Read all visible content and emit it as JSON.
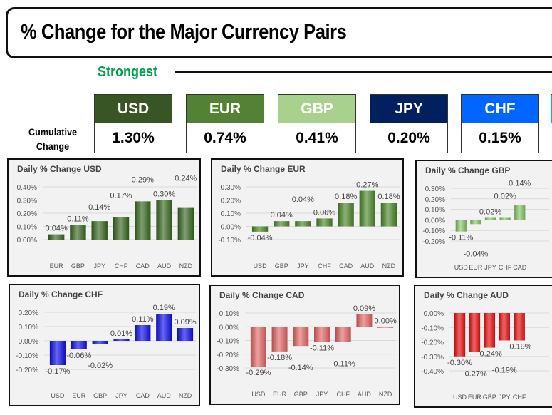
{
  "header": {
    "title": "% Change for the Major Currency Pairs",
    "strongest_label": "Strongest",
    "cumulative_label_line1": "Cumulative",
    "cumulative_label_line2": "Change"
  },
  "currencies": [
    {
      "code": "USD",
      "value": "1.30%",
      "color": "#375623"
    },
    {
      "code": "EUR",
      "value": "0.74%",
      "color": "#548235"
    },
    {
      "code": "GBP",
      "value": "0.41%",
      "color": "#a9d18e"
    },
    {
      "code": "JPY",
      "value": "0.20%",
      "color": "#002060"
    },
    {
      "code": "CHF",
      "value": "0.15%",
      "color": "#0066ff"
    },
    {
      "code": "",
      "value": "",
      "color": "#00b0f0"
    }
  ],
  "chart_data": [
    {
      "type": "bar",
      "title": "Daily % Change USD",
      "categories": [
        "EUR",
        "GBP",
        "JPY",
        "CHF",
        "CAD",
        "AUD",
        "NZD"
      ],
      "values": [
        0.04,
        0.11,
        0.14,
        0.17,
        0.29,
        0.3,
        0.24
      ],
      "ylim": [
        0,
        0.4
      ],
      "yticks": [
        0,
        0.1,
        0.2,
        0.3,
        0.4
      ],
      "color": "#3a6b22",
      "grid": true
    },
    {
      "type": "bar",
      "title": "Daily % Change EUR",
      "categories": [
        "USD",
        "GBP",
        "JPY",
        "CHF",
        "CAD",
        "AUD",
        "NZD"
      ],
      "values": [
        -0.04,
        0.04,
        0.04,
        0.06,
        0.18,
        0.27,
        0.18
      ],
      "ylim": [
        -0.1,
        0.3
      ],
      "yticks": [
        -0.1,
        0,
        0.1,
        0.2,
        0.3
      ],
      "color": "#4f8a2c",
      "grid": true
    },
    {
      "type": "bar",
      "title": "Daily % Change GBP",
      "categories": [
        "USD",
        "EUR",
        "JPY",
        "CHF",
        "CAD"
      ],
      "values": [
        -0.11,
        -0.04,
        0.02,
        0.02,
        0.14
      ],
      "ylim": [
        -0.2,
        0.3
      ],
      "yticks": [
        -0.2,
        -0.1,
        0,
        0.1,
        0.2,
        0.3
      ],
      "color": "#8cc96a",
      "grid": true
    },
    {
      "type": "bar",
      "title": "Daily % Change CHF",
      "categories": [
        "USD",
        "EUR",
        "GBP",
        "JPY",
        "CAD",
        "AUD",
        "NZD"
      ],
      "values": [
        -0.17,
        -0.06,
        -0.02,
        0.01,
        0.11,
        0.19,
        0.09
      ],
      "ylim": [
        -0.2,
        0.2
      ],
      "yticks": [
        -0.2,
        -0.1,
        0,
        0.1,
        0.2
      ],
      "color": "#1010ee",
      "grid": true
    },
    {
      "type": "bar",
      "title": "Daily % Change CAD",
      "categories": [
        "USD",
        "EUR",
        "GBP",
        "JPY",
        "CHF",
        "AUD",
        "NZD"
      ],
      "values": [
        -0.29,
        -0.18,
        -0.14,
        -0.11,
        -0.11,
        0.09,
        0.0
      ],
      "ylim": [
        -0.3,
        0.1
      ],
      "yticks": [
        -0.3,
        -0.2,
        -0.1,
        0,
        0.1
      ],
      "color": "#e86a6a",
      "grid": true
    },
    {
      "type": "bar",
      "title": "Daily % Change AUD",
      "categories": [
        "USD",
        "EUR",
        "GBP",
        "JPY",
        "CHF"
      ],
      "values": [
        -0.3,
        -0.27,
        -0.24,
        -0.19,
        -0.19
      ],
      "ylim": [
        -0.4,
        0
      ],
      "yticks": [
        -0.4,
        -0.3,
        -0.2,
        -0.1,
        0
      ],
      "color": "#ee1111",
      "grid": true
    }
  ]
}
